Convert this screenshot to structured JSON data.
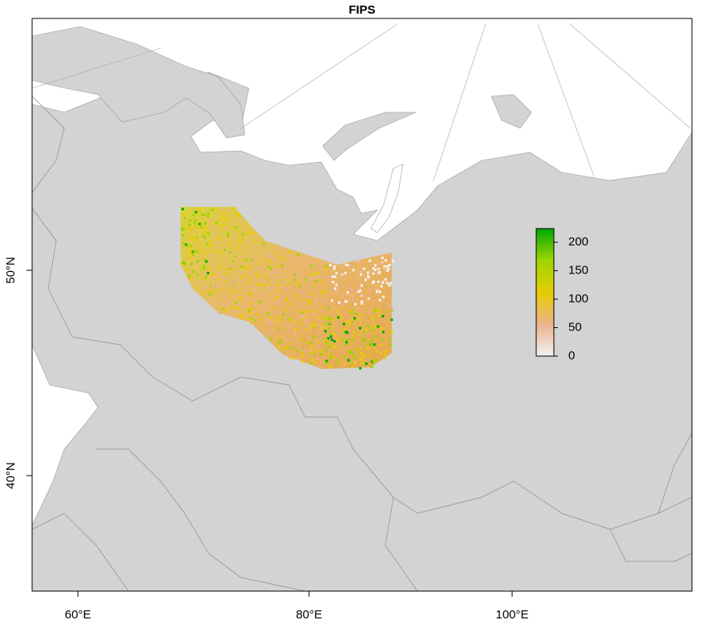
{
  "map": {
    "title": "FIPS",
    "x_axis": {
      "ticks": [
        {
          "label": "60°E"
        },
        {
          "label": "80°E"
        },
        {
          "label": "100°E"
        }
      ]
    },
    "y_axis": {
      "ticks": [
        {
          "label": "50°N"
        },
        {
          "label": "40°N"
        }
      ]
    },
    "legend": {
      "range": [
        0,
        224
      ],
      "ticks": [
        0,
        50,
        100,
        150,
        200
      ],
      "palette": [
        "#f2f2f2",
        "#ebb28c",
        "#e6cc00",
        "#9ed600",
        "#00a600"
      ]
    }
  }
}
